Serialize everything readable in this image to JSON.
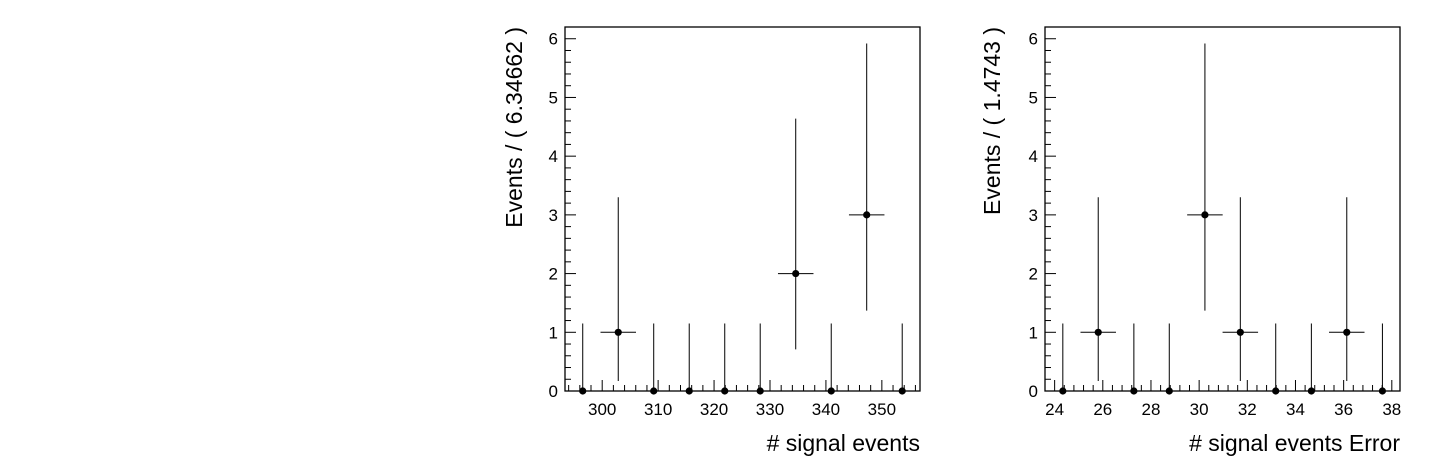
{
  "chart_data": [
    {
      "type": "scatter",
      "xlabel": "# signal events",
      "ylabel": "Events / ( 6.34662 )",
      "xlim": [
        293.35,
        356.82
      ],
      "ylim": [
        0,
        6.2
      ],
      "xticks": [
        300,
        310,
        320,
        330,
        340,
        350
      ],
      "yticks": [
        0,
        1,
        2,
        3,
        4,
        5,
        6
      ],
      "bin_width": 6.34662,
      "grid": false,
      "legend": "none",
      "points": [
        {
          "x": 296.52,
          "y": 0,
          "err_low": 0,
          "err_high": 1.15
        },
        {
          "x": 302.87,
          "y": 1,
          "err_low": 0.83,
          "err_high": 2.3
        },
        {
          "x": 309.21,
          "y": 0,
          "err_low": 0,
          "err_high": 1.15
        },
        {
          "x": 315.56,
          "y": 0,
          "err_low": 0,
          "err_high": 1.15
        },
        {
          "x": 321.91,
          "y": 0,
          "err_low": 0,
          "err_high": 1.15
        },
        {
          "x": 328.25,
          "y": 0,
          "err_low": 0,
          "err_high": 1.15
        },
        {
          "x": 334.6,
          "y": 2,
          "err_low": 1.29,
          "err_high": 2.64
        },
        {
          "x": 340.95,
          "y": 0,
          "err_low": 0,
          "err_high": 1.15
        },
        {
          "x": 347.29,
          "y": 3,
          "err_low": 1.63,
          "err_high": 2.92
        },
        {
          "x": 353.64,
          "y": 0,
          "err_low": 0,
          "err_high": 1.15
        }
      ]
    },
    {
      "type": "scatter",
      "xlabel": "# signal events Error",
      "ylabel": "Events / ( 1.4743 )",
      "xlim": [
        23.6,
        38.34
      ],
      "ylim": [
        0,
        6.2
      ],
      "xticks": [
        24,
        26,
        28,
        30,
        32,
        34,
        36,
        38
      ],
      "yticks": [
        0,
        1,
        2,
        3,
        4,
        5,
        6
      ],
      "bin_width": 1.4743,
      "grid": false,
      "legend": "none",
      "points": [
        {
          "x": 24.34,
          "y": 0,
          "err_low": 0,
          "err_high": 1.15
        },
        {
          "x": 25.81,
          "y": 1,
          "err_low": 0.83,
          "err_high": 2.3
        },
        {
          "x": 27.29,
          "y": 0,
          "err_low": 0,
          "err_high": 1.15
        },
        {
          "x": 28.76,
          "y": 0,
          "err_low": 0,
          "err_high": 1.15
        },
        {
          "x": 30.24,
          "y": 3,
          "err_low": 1.63,
          "err_high": 2.92
        },
        {
          "x": 31.71,
          "y": 1,
          "err_low": 0.83,
          "err_high": 2.3
        },
        {
          "x": 33.18,
          "y": 0,
          "err_low": 0,
          "err_high": 1.15
        },
        {
          "x": 34.66,
          "y": 0,
          "err_low": 0,
          "err_high": 1.15
        },
        {
          "x": 36.13,
          "y": 1,
          "err_low": 0.83,
          "err_high": 2.3
        },
        {
          "x": 37.61,
          "y": 0,
          "err_low": 0,
          "err_high": 1.15
        }
      ]
    }
  ]
}
